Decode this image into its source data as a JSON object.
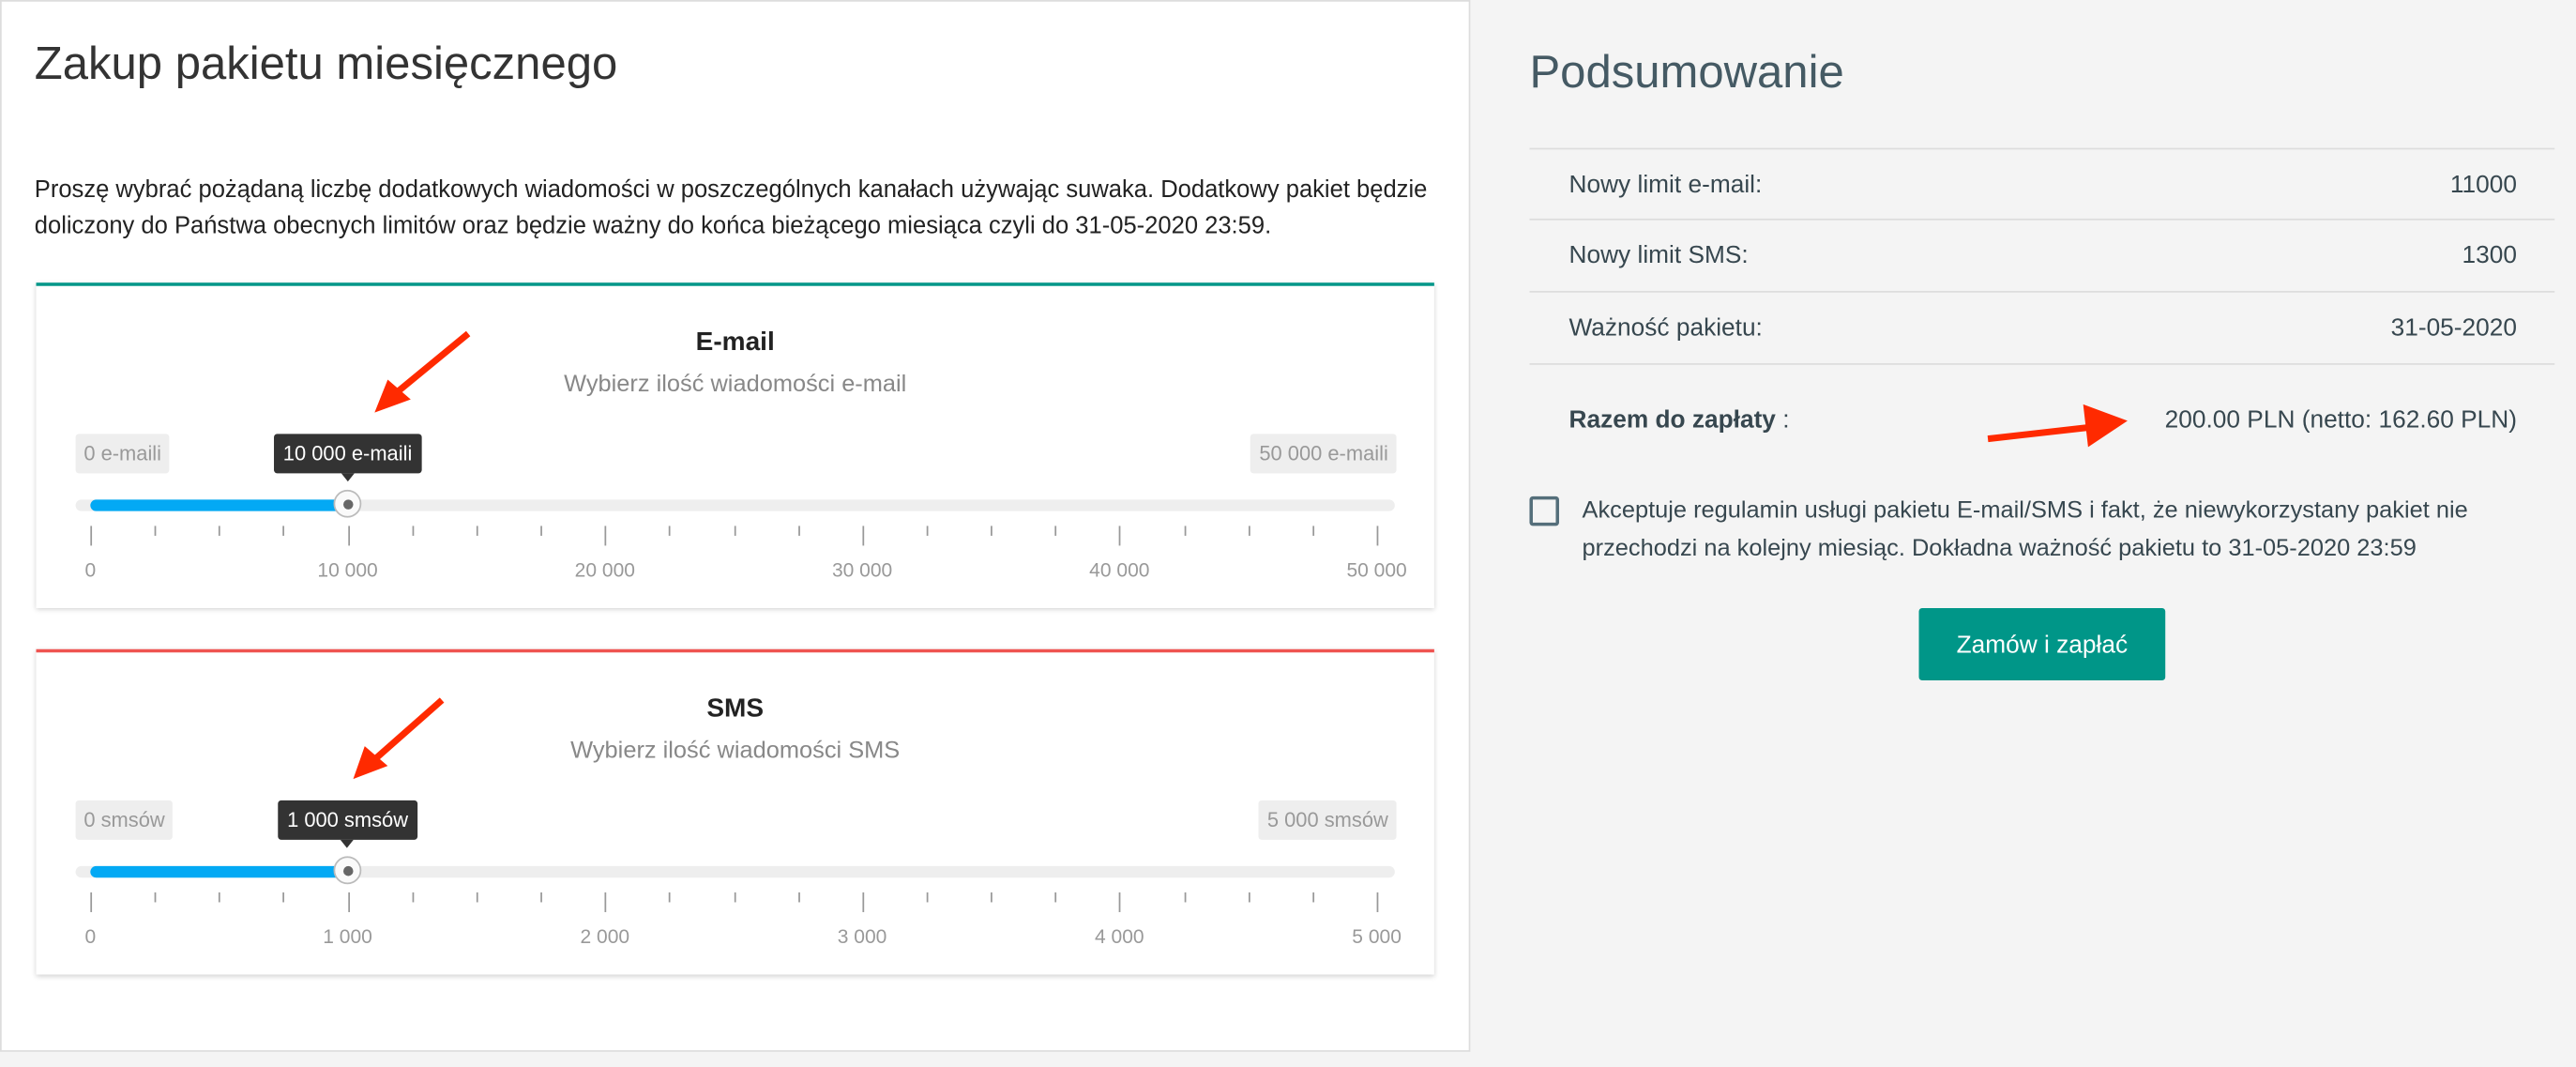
{
  "purchase": {
    "title": "Zakup pakietu miesięcznego",
    "intro": "Proszę wybrać pożądaną liczbę dodatkowych wiadomości w poszczególnych kanałach używając suwaka. Dodatkowy pakiet będzie doliczony do Państwa obecnych limitów oraz będzie ważny do końca bieżącego miesiąca czyli do 31-05-2020 23:59.",
    "email": {
      "title": "E-mail",
      "subtitle": "Wybierz ilość wiadomości e-mail",
      "min_label": "0 e-maili",
      "max_label": "50 000 e-maili",
      "value_label": "10 000 e-maili",
      "value": 10000,
      "min": 0,
      "max": 50000,
      "tick_labels": [
        "0",
        "10 000",
        "20 000",
        "30 000",
        "40 000",
        "50 000"
      ],
      "accent": "#009688"
    },
    "sms": {
      "title": "SMS",
      "subtitle": "Wybierz ilość wiadomości SMS",
      "min_label": "0 smsów",
      "max_label": "5 000 smsów",
      "value_label": "1 000 smsów",
      "value": 1000,
      "min": 0,
      "max": 5000,
      "tick_labels": [
        "0",
        "1 000",
        "2 000",
        "3 000",
        "4 000",
        "5 000"
      ],
      "accent": "#ef5350"
    },
    "slider_fill_color": "#03a9f4"
  },
  "summary": {
    "title": "Podsumowanie",
    "rows": [
      {
        "label": "Nowy limit e-mail:",
        "value": "11000"
      },
      {
        "label": "Nowy limit SMS:",
        "value": "1300"
      },
      {
        "label": "Ważność pakietu:",
        "value": "31-05-2020"
      }
    ],
    "total_label": "Razem do zapłaty",
    "total_sep": " :",
    "total_value": "200.00 PLN (netto: 162.60 PLN)",
    "terms": "Akceptuje regulamin usługi pakietu E-mail/SMS i fakt, że niewykorzystany pakiet nie przechodzi na kolejny miesiąc. Dokładna ważność pakietu to 31-05-2020 23:59",
    "terms_checked": false,
    "order_button": "Zamów i zapłać",
    "button_color": "#009688"
  },
  "annotation_color": "#ff2a00"
}
